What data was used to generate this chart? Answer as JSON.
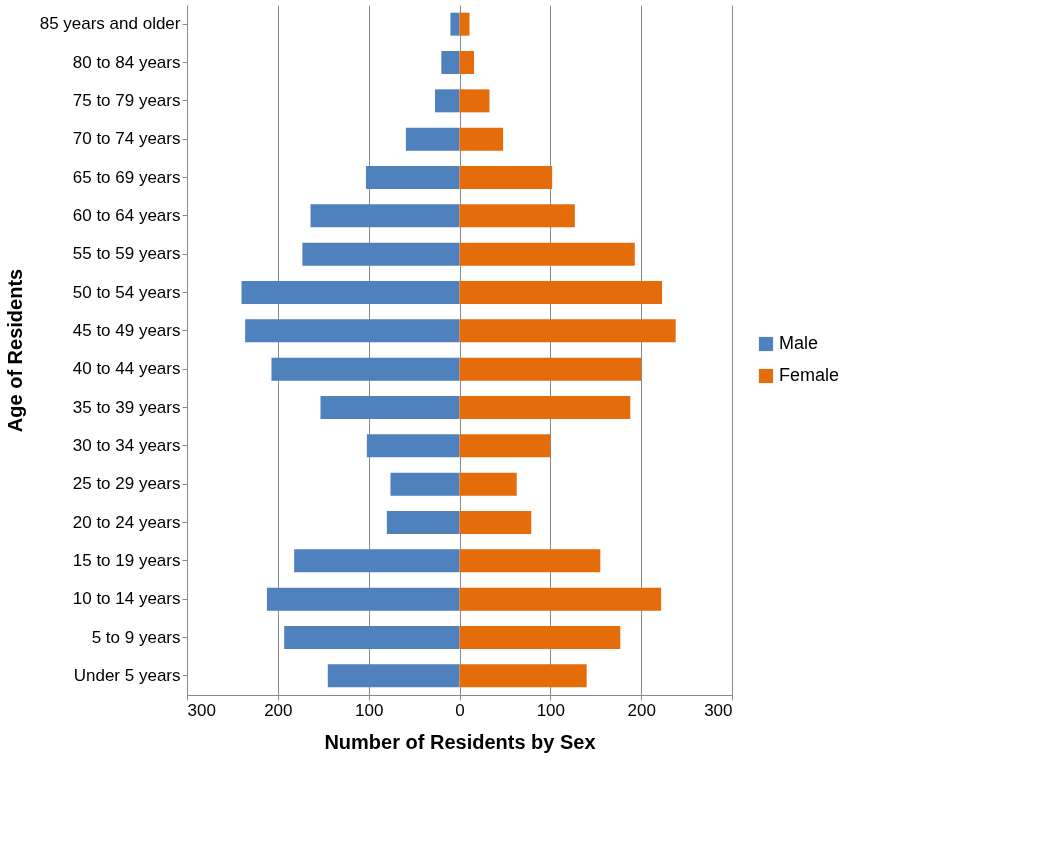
{
  "chart_data": {
    "type": "bar",
    "orientation": "horizontal",
    "xlabel": "Number of Residents by Sex",
    "ylabel": "Age of Residents",
    "categories": [
      "85 years and older",
      "80 to 84 years",
      "75 to 79 years",
      "70 to 74 years",
      "65 to 69 years",
      "60 to 64 years",
      "55 to 59 years",
      "50 to 54 years",
      "45 to 49 years",
      "40 to 44 years",
      "35 to 39 years",
      "30 to 34 years",
      "25 to 29 years",
      "20 to 24 years",
      "15 to 19 years",
      "10 to 14 years",
      "5 to 9 years",
      "Under 5 years"
    ],
    "series": [
      {
        "name": "Male",
        "color": "#4f81bd",
        "values": [
          -10,
          -20,
          -27,
          -59,
          -103,
          -164,
          -173,
          -240,
          -236,
          -207,
          -153,
          -102,
          -76,
          -80,
          -182,
          -212,
          -193,
          -145
        ]
      },
      {
        "name": "Female",
        "color": "#e46c0a",
        "values": [
          11,
          16,
          33,
          48,
          102,
          127,
          193,
          223,
          238,
          200,
          188,
          100,
          63,
          79,
          155,
          222,
          177,
          140
        ]
      }
    ],
    "xlim": [
      -300,
      300
    ],
    "xticks": [
      {
        "value": -300,
        "label": "300"
      },
      {
        "value": -200,
        "label": "200"
      },
      {
        "value": -100,
        "label": "100"
      },
      0,
      100,
      200,
      300
    ],
    "grid": "x",
    "legend": "right",
    "stacked": true
  }
}
